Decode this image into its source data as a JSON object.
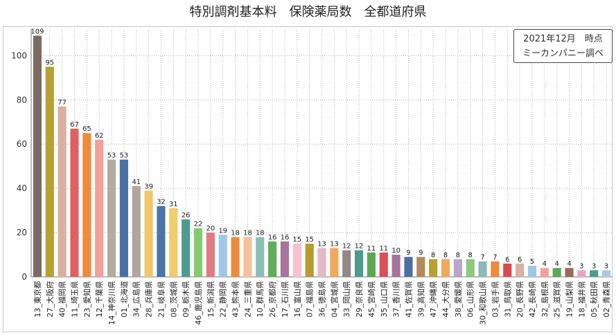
{
  "title": "特別調剤基本料　保険薬局数　全都道府県",
  "note": {
    "line1": "2021年12月　時点",
    "line2": "ミーカンパニー調べ"
  },
  "chart_data": {
    "type": "bar",
    "title": "特別調剤基本料　保険薬局数　全都道府県",
    "xlabel": "",
    "ylabel": "",
    "ylim": [
      0,
      112
    ],
    "yticks": [
      0,
      20,
      40,
      60,
      80,
      100
    ],
    "grid": true,
    "categories": [
      "13_東京都",
      "27_大阪府",
      "40_福岡県",
      "11_埼玉県",
      "23_愛知県",
      "12_千葉県",
      "14_神奈川県",
      "01_北海道",
      "34_広島県",
      "28_兵庫県",
      "21_岐阜県",
      "08_茨城県",
      "09_栃木県",
      "46_鹿児島県",
      "15_新潟県",
      "22_静岡県",
      "43_熊本県",
      "24_三重県",
      "10_群馬県",
      "26_京都府",
      "17_石川県",
      "16_富山県",
      "07_福島県",
      "36_徳島県",
      "04_宮城県",
      "33_岡山県",
      "29_奈良県",
      "45_宮崎県",
      "35_山口県",
      "37_香川県",
      "41_佐賀県",
      "39_高知県",
      "47_沖縄県",
      "44_大分県",
      "38_愛媛県",
      "06_山形県",
      "30_和歌山県",
      "03_岩手県",
      "31_鳥取県",
      "20_長野県",
      "42_長崎県",
      "32_島根県",
      "25_滋賀県",
      "19_山梨県",
      "18_福井県",
      "05_秋田県",
      "02_青森県"
    ],
    "values": [
      109,
      95,
      77,
      67,
      65,
      62,
      53,
      53,
      41,
      39,
      32,
      31,
      26,
      22,
      20,
      19,
      18,
      18,
      18,
      16,
      16,
      15,
      15,
      13,
      13,
      12,
      12,
      11,
      11,
      10,
      9,
      9,
      8,
      8,
      8,
      8,
      7,
      7,
      6,
      6,
      5,
      4,
      4,
      4,
      3,
      3,
      3
    ],
    "colors": [
      "#7b6b64",
      "#b8a032",
      "#d9b0a0",
      "#e06060",
      "#f08a3a",
      "#f4a09a",
      "#b5aba2",
      "#4a6fa5",
      "#b0a69e",
      "#f1c76a",
      "#4d73a8",
      "#f2cb6a",
      "#4c9b8e",
      "#87c96f",
      "#e07a80",
      "#9ec8e8",
      "#f08a3a",
      "#f5c09a",
      "#8abfb6",
      "#5fae5a",
      "#a8739c",
      "#f7c1d0",
      "#b89a2e",
      "#e4b8c4",
      "#f2a85a",
      "#8f8a87",
      "#4c9b8e",
      "#5aa854",
      "#d94f5c",
      "#a8739c",
      "#4d6fa0",
      "#b38b5a",
      "#b8a032",
      "#f2a85a",
      "#b8a6c8",
      "#8dc97a",
      "#8fb8b8",
      "#f08a3a",
      "#dc4a50",
      "#dcb0a0",
      "#9ec8e8",
      "#f5a0a0",
      "#5aa854",
      "#9a6a5a",
      "#e6a8c0",
      "#4c9b8e",
      "#a8cbe4"
    ]
  }
}
